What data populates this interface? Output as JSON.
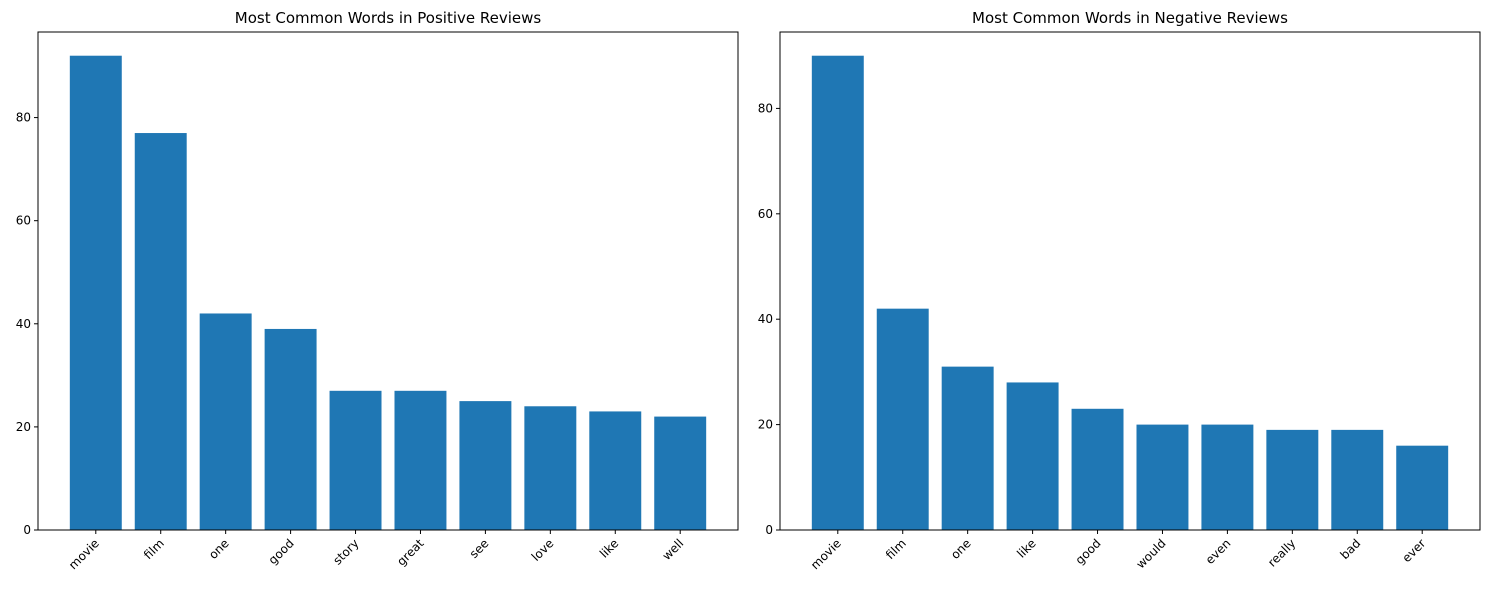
{
  "chart_data": [
    {
      "type": "bar",
      "title": "Most Common Words in Positive Reviews",
      "xlabel": "",
      "ylabel": "",
      "categories": [
        "movie",
        "film",
        "one",
        "good",
        "story",
        "great",
        "see",
        "love",
        "like",
        "well"
      ],
      "values": [
        92,
        77,
        42,
        39,
        27,
        27,
        25,
        24,
        23,
        22
      ],
      "ylim": [
        0,
        96.6
      ],
      "yticks": [
        0,
        20,
        40,
        60,
        80
      ],
      "grid": false,
      "color": "#1f77b4"
    },
    {
      "type": "bar",
      "title": "Most Common Words in Negative Reviews",
      "xlabel": "",
      "ylabel": "",
      "categories": [
        "movie",
        "film",
        "one",
        "like",
        "good",
        "would",
        "even",
        "really",
        "bad",
        "ever"
      ],
      "values": [
        90,
        42,
        31,
        28,
        23,
        20,
        20,
        19,
        19,
        16
      ],
      "ylim": [
        0,
        94.5
      ],
      "yticks": [
        0,
        20,
        40,
        60,
        80
      ],
      "grid": false,
      "color": "#1f77b4"
    }
  ]
}
